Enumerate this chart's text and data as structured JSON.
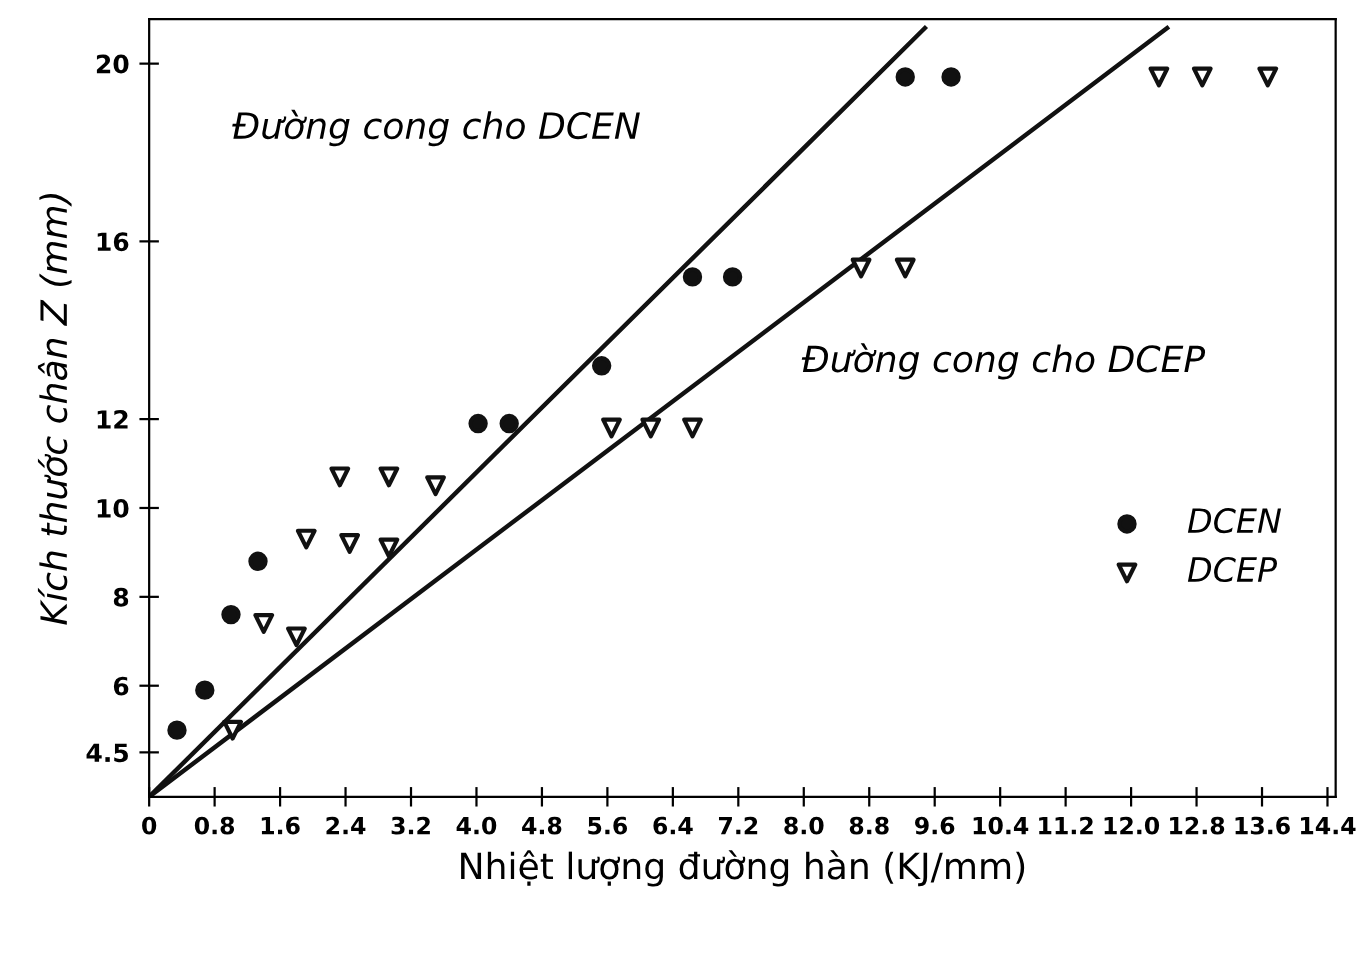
{
  "chart_data": {
    "type": "scatter",
    "xlabel": "Nhiệt lượng đường hàn (KJ/mm)",
    "ylabel": "Kích thước chân Z (mm)",
    "xlim": [
      0,
      14.5
    ],
    "ylim": [
      3.5,
      21
    ],
    "xticks": [
      0,
      {
        "value": 0.8,
        "label": "0.8"
      },
      1.6,
      2.4,
      3.2,
      {
        "value": 4.0,
        "label": "4.0"
      },
      4.8,
      5.6,
      6.4,
      7.2,
      {
        "value": 8.0,
        "label": "8.0"
      },
      8.8,
      9.6,
      10.4,
      11.2,
      {
        "value": 12.0,
        "label": "12.0"
      },
      12.8,
      13.6,
      14.4
    ],
    "yticks": [
      4.5,
      6,
      8,
      10,
      12,
      16,
      20
    ],
    "grid": false,
    "legend": "right",
    "series": [
      {
        "name": "DCEN",
        "marker": "circle",
        "color": "#111111",
        "x": [
          0.34,
          0.68,
          1.0,
          1.33,
          4.02,
          4.4,
          5.53,
          6.64,
          7.13,
          9.24,
          9.8
        ],
        "values": [
          5.0,
          5.9,
          7.6,
          8.8,
          11.9,
          11.9,
          13.2,
          15.2,
          15.2,
          19.7,
          19.7
        ]
      },
      {
        "name": "DCEP",
        "marker": "triangle",
        "color": "#111111",
        "x": [
          1.02,
          1.4,
          1.8,
          1.92,
          2.33,
          2.45,
          2.93,
          2.93,
          3.5,
          5.65,
          6.13,
          6.64,
          8.7,
          9.24,
          12.34,
          12.87,
          13.67
        ],
        "values": [
          5.0,
          7.4,
          7.1,
          9.3,
          10.7,
          9.2,
          10.7,
          9.1,
          10.5,
          11.8,
          11.8,
          11.8,
          15.4,
          15.4,
          19.7,
          19.7,
          19.7
        ]
      },
      {
        "type": "line",
        "marker": "none",
        "line_style": "solid",
        "color": "#111111",
        "x": [
          0,
          9.48
        ],
        "values": [
          3.5,
          20.8
        ]
      },
      {
        "type": "line",
        "marker": "none",
        "line_style": "solid",
        "color": "#111111",
        "x": [
          0,
          12.44
        ],
        "values": [
          3.5,
          20.8
        ]
      }
    ],
    "annotations": [
      "Đường cong cho DCEN",
      "Đường cong cho DCEP"
    ]
  }
}
